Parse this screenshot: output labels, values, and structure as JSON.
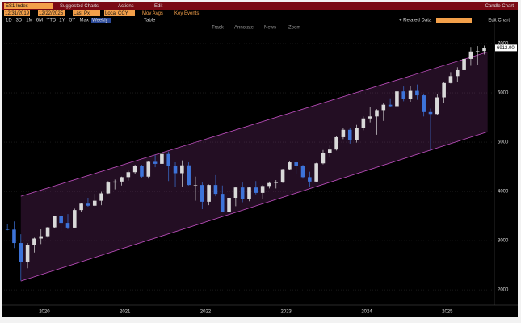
{
  "ui": {
    "ticker": "ES1 Index",
    "menu": [
      "Suggested Charts",
      "Actions",
      "Edit"
    ],
    "window_title": "Candle Chart",
    "start_date": "12/31/2019",
    "end_date": "12/22/2025",
    "field": "Last Px",
    "currency": "Local CCY",
    "options": [
      "Mov Avgs",
      "Key Events"
    ],
    "ranges": [
      "1D",
      "3D",
      "1M",
      "6M",
      "YTD",
      "1Y",
      "5Y",
      "Max"
    ],
    "period": "Weekly",
    "table": "Table",
    "related": "+ Related Data",
    "edit_chart": "Edit Chart",
    "tools": [
      "Track",
      "Annotate",
      "News",
      "Zoom"
    ]
  },
  "chart_data": {
    "type": "candlestick",
    "categories": [
      null,
      null,
      null,
      null,
      null,
      null,
      null,
      null,
      null,
      null,
      null,
      null,
      null,
      null,
      null,
      null,
      null,
      null,
      null,
      null,
      null,
      null,
      null,
      null,
      null,
      null,
      null,
      null,
      null,
      null,
      null,
      null,
      null,
      null,
      null,
      null,
      null,
      null,
      null,
      null,
      null,
      null,
      null,
      null,
      null,
      null,
      null,
      null,
      null,
      null,
      null,
      null,
      null,
      null,
      null,
      null,
      null,
      null,
      null,
      null,
      null,
      null,
      null,
      null,
      null,
      null,
      null,
      null,
      null,
      null,
      null,
      null
    ],
    "open": [
      3230,
      3225,
      2951,
      2569,
      2910,
      3042,
      3090,
      3270,
      3498,
      3360,
      3265,
      3622,
      3751,
      3710,
      3810,
      3960,
      4180,
      4200,
      4290,
      4390,
      4520,
      4300,
      4600,
      4560,
      4760,
      4510,
      4370,
      4530,
      4130,
      4130,
      3790,
      4130,
      3950,
      3590,
      3870,
      4080,
      3840,
      4080,
      3970,
      4110,
      4170,
      4180,
      4450,
      4590,
      4510,
      4290,
      4200,
      4570,
      4780,
      4850,
      5100,
      5250,
      5040,
      5280,
      5480,
      5520,
      5650,
      5760,
      5730,
      6030,
      5880,
      6040,
      5950,
      5610,
      5570,
      5910,
      6200,
      6340,
      6460,
      6690,
      6840,
      6850
    ],
    "high": [
      3340,
      3390,
      3130,
      2950,
      3060,
      3230,
      3280,
      3510,
      3580,
      3540,
      3650,
      3760,
      3870,
      3950,
      3990,
      4210,
      4240,
      4300,
      4420,
      4540,
      4540,
      4610,
      4740,
      4800,
      4810,
      4590,
      4630,
      4590,
      4300,
      4180,
      4140,
      4330,
      4120,
      3910,
      4100,
      4180,
      4100,
      4210,
      4130,
      4200,
      4230,
      4460,
      4610,
      4600,
      4540,
      4400,
      4580,
      4840,
      4930,
      5120,
      5290,
      5290,
      5350,
      5520,
      5720,
      5670,
      5800,
      5890,
      6080,
      6130,
      6140,
      6170,
      5980,
      5680,
      5970,
      6220,
      6420,
      6520,
      6730,
      6930,
      6950,
      6960
    ],
    "low": [
      3210,
      2850,
      2190,
      2440,
      2760,
      2930,
      3060,
      3250,
      3200,
      3230,
      3260,
      3590,
      3690,
      3700,
      3720,
      3950,
      4040,
      4120,
      4220,
      4350,
      4270,
      4260,
      4490,
      4490,
      4210,
      4100,
      4100,
      4120,
      3810,
      3640,
      3720,
      3900,
      3580,
      3500,
      3700,
      3780,
      3800,
      3940,
      3840,
      4060,
      4060,
      4170,
      4440,
      4350,
      4260,
      4100,
      4190,
      4550,
      4700,
      4830,
      5060,
      4970,
      4990,
      5240,
      5400,
      5150,
      5430,
      5720,
      5700,
      5830,
      5820,
      5860,
      5520,
      4830,
      5550,
      5800,
      6190,
      6220,
      6400,
      6550,
      6560,
      6780
    ],
    "close": [
      3225,
      2951,
      2569,
      2910,
      3042,
      3090,
      3270,
      3498,
      3360,
      3265,
      3622,
      3751,
      3710,
      3810,
      3960,
      4180,
      4200,
      4290,
      4390,
      4520,
      4300,
      4600,
      4560,
      4760,
      4510,
      4370,
      4530,
      4130,
      4130,
      3790,
      4130,
      3950,
      3590,
      3870,
      4080,
      3840,
      4080,
      3970,
      4110,
      4170,
      4180,
      4450,
      4590,
      4510,
      4290,
      4200,
      4570,
      4780,
      4850,
      5100,
      5250,
      5040,
      5280,
      5480,
      5520,
      5650,
      5760,
      5730,
      6030,
      5880,
      6040,
      5950,
      5610,
      5570,
      5910,
      6200,
      6340,
      6460,
      6690,
      6840,
      6850,
      6912
    ],
    "up_color": "#d9d9d9",
    "down_color": "#3d73d9",
    "xlim": [
      -0.5,
      72.5
    ],
    "xticks": [
      {
        "value": 5.5,
        "label": "2020"
      },
      {
        "value": 17.5,
        "label": "2021"
      },
      {
        "value": 29.5,
        "label": "2022"
      },
      {
        "value": 41.5,
        "label": "2023"
      },
      {
        "value": 53.5,
        "label": "2024"
      },
      {
        "value": 65.5,
        "label": "2025"
      }
    ],
    "ylim": [
      1690,
      7410
    ],
    "yticks": [
      2000,
      3000,
      4000,
      5000,
      6000,
      7000
    ],
    "grid": true,
    "channel": {
      "x": [
        2,
        71.5
      ],
      "upper": [
        3900,
        6830
      ],
      "lower": [
        2180,
        5210
      ],
      "color": "#c04fc0"
    },
    "last_price": {
      "value": 6912,
      "label": "6912.00"
    }
  }
}
